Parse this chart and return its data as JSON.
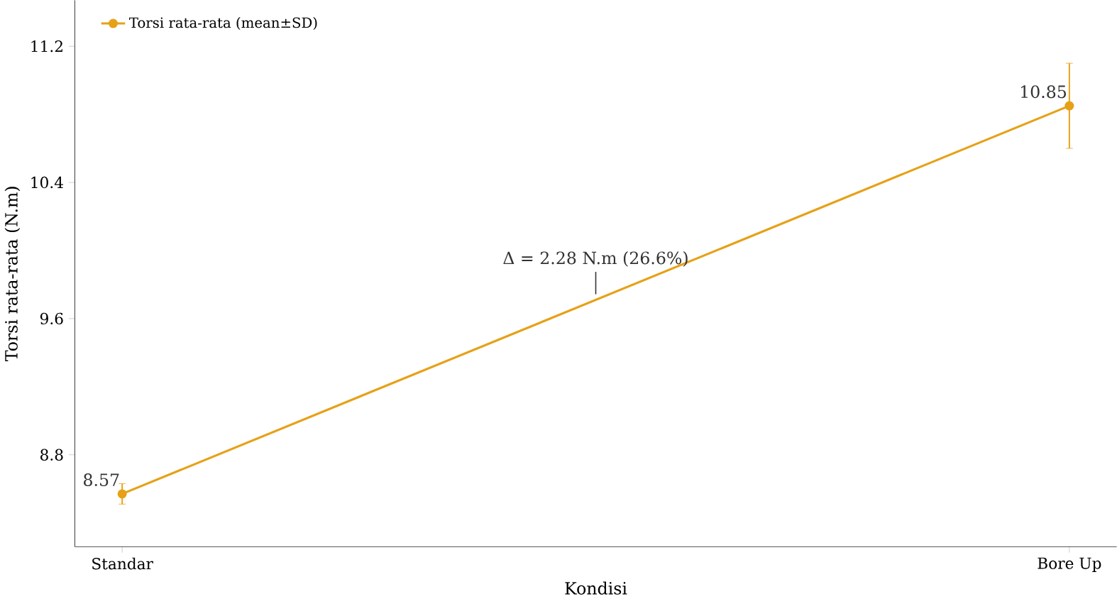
{
  "chart_data": {
    "type": "line",
    "xlabel": "Kondisi",
    "ylabel": "Torsi rata-rata (N.m)",
    "categories": [
      "Standar",
      "Bore Up"
    ],
    "series": [
      {
        "name": "Torsi rata-rata (mean±SD)",
        "color": "#e6a117",
        "values": [
          8.57,
          10.85
        ],
        "errors": [
          0.06,
          0.25
        ]
      }
    ],
    "ylim": [
      8.26,
      11.47
    ],
    "yticks": [
      8.8,
      9.6,
      10.4,
      11.2
    ],
    "data_labels": true,
    "legend": "top left",
    "marker": "circle",
    "line_style": "solid",
    "grid": false,
    "annotations": [
      {
        "text": "Δ = 2.28 N.m (26.6%)",
        "y": 9.71
      }
    ]
  }
}
